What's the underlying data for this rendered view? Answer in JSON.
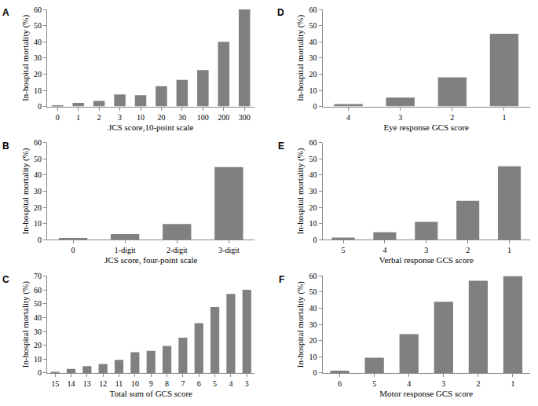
{
  "chart_data": [
    {
      "type": "bar",
      "title": "A",
      "x_label": "JCS score,10-point scale",
      "y_label": "In-hospital mortality (%)",
      "categories": [
        "0",
        "1",
        "2",
        "3",
        "10",
        "20",
        "30",
        "100",
        "200",
        "300"
      ],
      "values": [
        0.8,
        2.2,
        3.5,
        7.5,
        7,
        12.5,
        16.5,
        22.5,
        40,
        60
      ],
      "color": "#808080",
      "ylim": [
        0,
        60
      ],
      "yticks": [
        0,
        10,
        20,
        30,
        40,
        50,
        60
      ],
      "grid": false
    },
    {
      "type": "bar",
      "title": "B",
      "x_label": "JCS score, four-point scale",
      "y_label": "In-hospital mortality (%)",
      "categories": [
        "0",
        "1-digit",
        "2-digit",
        "3-digit"
      ],
      "values": [
        1,
        3.5,
        9.7,
        45
      ],
      "color": "#808080",
      "ylim": [
        0,
        60
      ],
      "yticks": [
        0,
        10,
        20,
        30,
        40,
        50,
        60
      ],
      "grid": false
    },
    {
      "type": "bar",
      "title": "C",
      "x_label": "Total sum of GCS score",
      "y_label": "In-hospital mortality (%)",
      "categories": [
        "15",
        "14",
        "13",
        "12",
        "11",
        "10",
        "9",
        "8",
        "7",
        "6",
        "5",
        "4",
        "3"
      ],
      "values": [
        0.8,
        3,
        5,
        6.5,
        9.5,
        15,
        16,
        19.5,
        25.5,
        36,
        47.5,
        57,
        60
      ],
      "color": "#808080",
      "ylim": [
        0,
        70
      ],
      "yticks": [
        0,
        10,
        20,
        30,
        40,
        50,
        60,
        70
      ],
      "grid": false
    },
    {
      "type": "bar",
      "title": "D",
      "x_label": "Eye response GCS score",
      "y_label": "In-hospital mortality (%)",
      "categories": [
        "4",
        "3",
        "2",
        "1"
      ],
      "values": [
        1.5,
        5.5,
        18,
        45
      ],
      "color": "#808080",
      "ylim": [
        0,
        60
      ],
      "yticks": [
        0,
        10,
        20,
        30,
        40,
        50,
        60
      ],
      "grid": false
    },
    {
      "type": "bar",
      "title": "E",
      "x_label": "Verbal response GCS score",
      "y_label": "In-hospital mortality (%)",
      "categories": [
        "5",
        "4",
        "3",
        "2",
        "1"
      ],
      "values": [
        1.2,
        4.5,
        11,
        24,
        45.5
      ],
      "color": "#808080",
      "ylim": [
        0,
        60
      ],
      "yticks": [
        0,
        10,
        20,
        30,
        40,
        50,
        60
      ],
      "grid": false
    },
    {
      "type": "bar",
      "title": "F",
      "x_label": "Motor response GCS score",
      "y_label": "In-hospital mortality (%)",
      "categories": [
        "6",
        "5",
        "4",
        "3",
        "2",
        "1"
      ],
      "values": [
        1.5,
        9.5,
        24,
        44,
        57,
        60
      ],
      "color": "#808080",
      "ylim": [
        0,
        60
      ],
      "yticks": [
        0,
        10,
        20,
        30,
        40,
        50,
        60
      ],
      "grid": false
    }
  ]
}
